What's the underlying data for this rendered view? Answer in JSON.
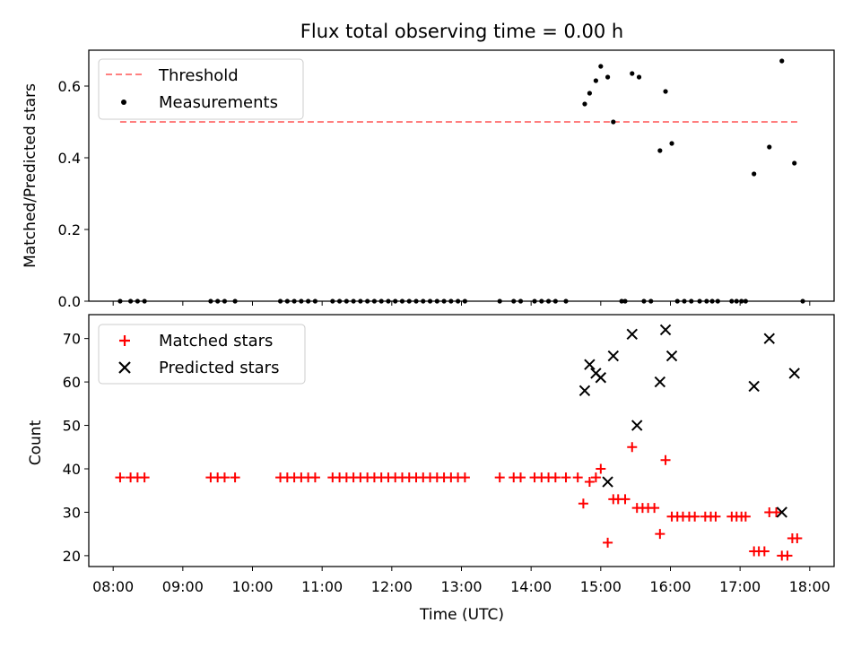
{
  "chart_data": {
    "title": "Flux total observing time = 0.00 h",
    "xlabel": "Time (UTC)",
    "x_tick_labels": [
      "08:00",
      "09:00",
      "10:00",
      "11:00",
      "12:00",
      "13:00",
      "14:00",
      "15:00",
      "16:00",
      "17:00",
      "18:00"
    ],
    "x_ticks_hours": [
      8,
      9,
      10,
      11,
      12,
      13,
      14,
      15,
      16,
      17,
      18
    ],
    "xlim_hours": [
      7.65,
      18.35
    ],
    "panels": [
      {
        "type": "line+scatter",
        "ylabel": "Matched/Predicted stars",
        "ylim": [
          0,
          0.7
        ],
        "y_ticks": [
          0.0,
          0.2,
          0.4,
          0.6
        ],
        "y_tick_labels": [
          "0.0",
          "0.2",
          "0.4",
          "0.6"
        ],
        "legend": {
          "position": "upper left",
          "entries": [
            "Threshold",
            "Measurements"
          ]
        },
        "series": [
          {
            "name": "Threshold",
            "style": "dashed-line",
            "color": "#ff7f7f",
            "x": [
              8.1,
              17.85
            ],
            "y": [
              0.5,
              0.5
            ]
          },
          {
            "name": "Measurements",
            "style": "dot",
            "color": "#000000",
            "x": [
              8.1,
              8.25,
              8.35,
              8.45,
              9.4,
              9.5,
              9.6,
              9.75,
              10.4,
              10.5,
              10.6,
              10.7,
              10.8,
              10.9,
              11.15,
              11.25,
              11.35,
              11.45,
              11.55,
              11.65,
              11.75,
              11.85,
              11.95,
              12.05,
              12.15,
              12.25,
              12.35,
              12.45,
              12.55,
              12.65,
              12.75,
              12.85,
              12.95,
              13.05,
              13.55,
              13.75,
              13.85,
              14.05,
              14.15,
              14.25,
              14.35,
              14.5,
              14.77,
              14.84,
              14.93,
              15.0,
              15.1,
              15.18,
              15.3,
              15.35,
              15.45,
              15.55,
              15.62,
              15.72,
              15.85,
              15.93,
              16.02,
              16.1,
              16.2,
              16.3,
              16.42,
              16.52,
              16.6,
              16.68,
              16.88,
              16.95,
              17.02,
              17.08,
              17.2,
              17.42,
              17.6,
              17.78,
              17.9
            ],
            "y": [
              0,
              0,
              0,
              0,
              0,
              0,
              0,
              0,
              0,
              0,
              0,
              0,
              0,
              0,
              0,
              0,
              0,
              0,
              0,
              0,
              0,
              0,
              0,
              0,
              0,
              0,
              0,
              0,
              0,
              0,
              0,
              0,
              0,
              0,
              0,
              0,
              0,
              0,
              0,
              0,
              0,
              0,
              0.55,
              0.58,
              0.615,
              0.655,
              0.625,
              0.5,
              0,
              0,
              0.635,
              0.625,
              0,
              0,
              0.42,
              0.585,
              0.44,
              0,
              0,
              0,
              0,
              0,
              0,
              0,
              0,
              0,
              0,
              0,
              0.355,
              0.43,
              0.67,
              0.385,
              0
            ]
          }
        ]
      },
      {
        "type": "scatter",
        "ylabel": "Count",
        "ylim": [
          17.5,
          75.5
        ],
        "y_ticks": [
          20,
          30,
          40,
          50,
          60,
          70
        ],
        "y_tick_labels": [
          "20",
          "30",
          "40",
          "50",
          "60",
          "70"
        ],
        "legend": {
          "position": "upper left",
          "entries": [
            "Matched stars",
            "Predicted stars"
          ]
        },
        "series": [
          {
            "name": "Matched stars",
            "marker": "plus",
            "color": "#ff0000",
            "x": [
              8.1,
              8.25,
              8.35,
              8.45,
              9.4,
              9.5,
              9.6,
              9.75,
              10.4,
              10.5,
              10.6,
              10.7,
              10.8,
              10.9,
              11.15,
              11.25,
              11.35,
              11.45,
              11.55,
              11.65,
              11.75,
              11.85,
              11.95,
              12.05,
              12.15,
              12.25,
              12.35,
              12.45,
              12.55,
              12.65,
              12.75,
              12.85,
              12.95,
              13.05,
              13.55,
              13.75,
              13.85,
              14.05,
              14.15,
              14.25,
              14.35,
              14.5,
              14.67,
              14.75,
              14.84,
              14.93,
              15.0,
              15.1,
              15.18,
              15.25,
              15.35,
              15.45,
              15.52,
              15.6,
              15.68,
              15.77,
              15.85,
              15.93,
              16.02,
              16.1,
              16.18,
              16.27,
              16.35,
              16.5,
              16.58,
              16.65,
              16.88,
              16.95,
              17.02,
              17.08,
              17.2,
              17.27,
              17.35,
              17.42,
              17.52,
              17.6,
              17.68,
              17.75,
              17.82
            ],
            "y": [
              38,
              38,
              38,
              38,
              38,
              38,
              38,
              38,
              38,
              38,
              38,
              38,
              38,
              38,
              38,
              38,
              38,
              38,
              38,
              38,
              38,
              38,
              38,
              38,
              38,
              38,
              38,
              38,
              38,
              38,
              38,
              38,
              38,
              38,
              38,
              38,
              38,
              38,
              38,
              38,
              38,
              38,
              38,
              32,
              37,
              38,
              40,
              23,
              33,
              33,
              33,
              45,
              31,
              31,
              31,
              31,
              25,
              42,
              29,
              29,
              29,
              29,
              29,
              29,
              29,
              29,
              29,
              29,
              29,
              29,
              21,
              21,
              21,
              30,
              30,
              20,
              20,
              24,
              24
            ]
          },
          {
            "name": "Predicted stars",
            "marker": "x",
            "color": "#000000",
            "x": [
              14.77,
              14.84,
              14.93,
              15.0,
              15.1,
              15.18,
              15.45,
              15.52,
              15.85,
              15.93,
              16.02,
              17.2,
              17.42,
              17.6,
              17.78
            ],
            "y": [
              58,
              64,
              62,
              61,
              37,
              66,
              71,
              50,
              60,
              72,
              66,
              59,
              70,
              30,
              62
            ]
          }
        ]
      }
    ]
  }
}
